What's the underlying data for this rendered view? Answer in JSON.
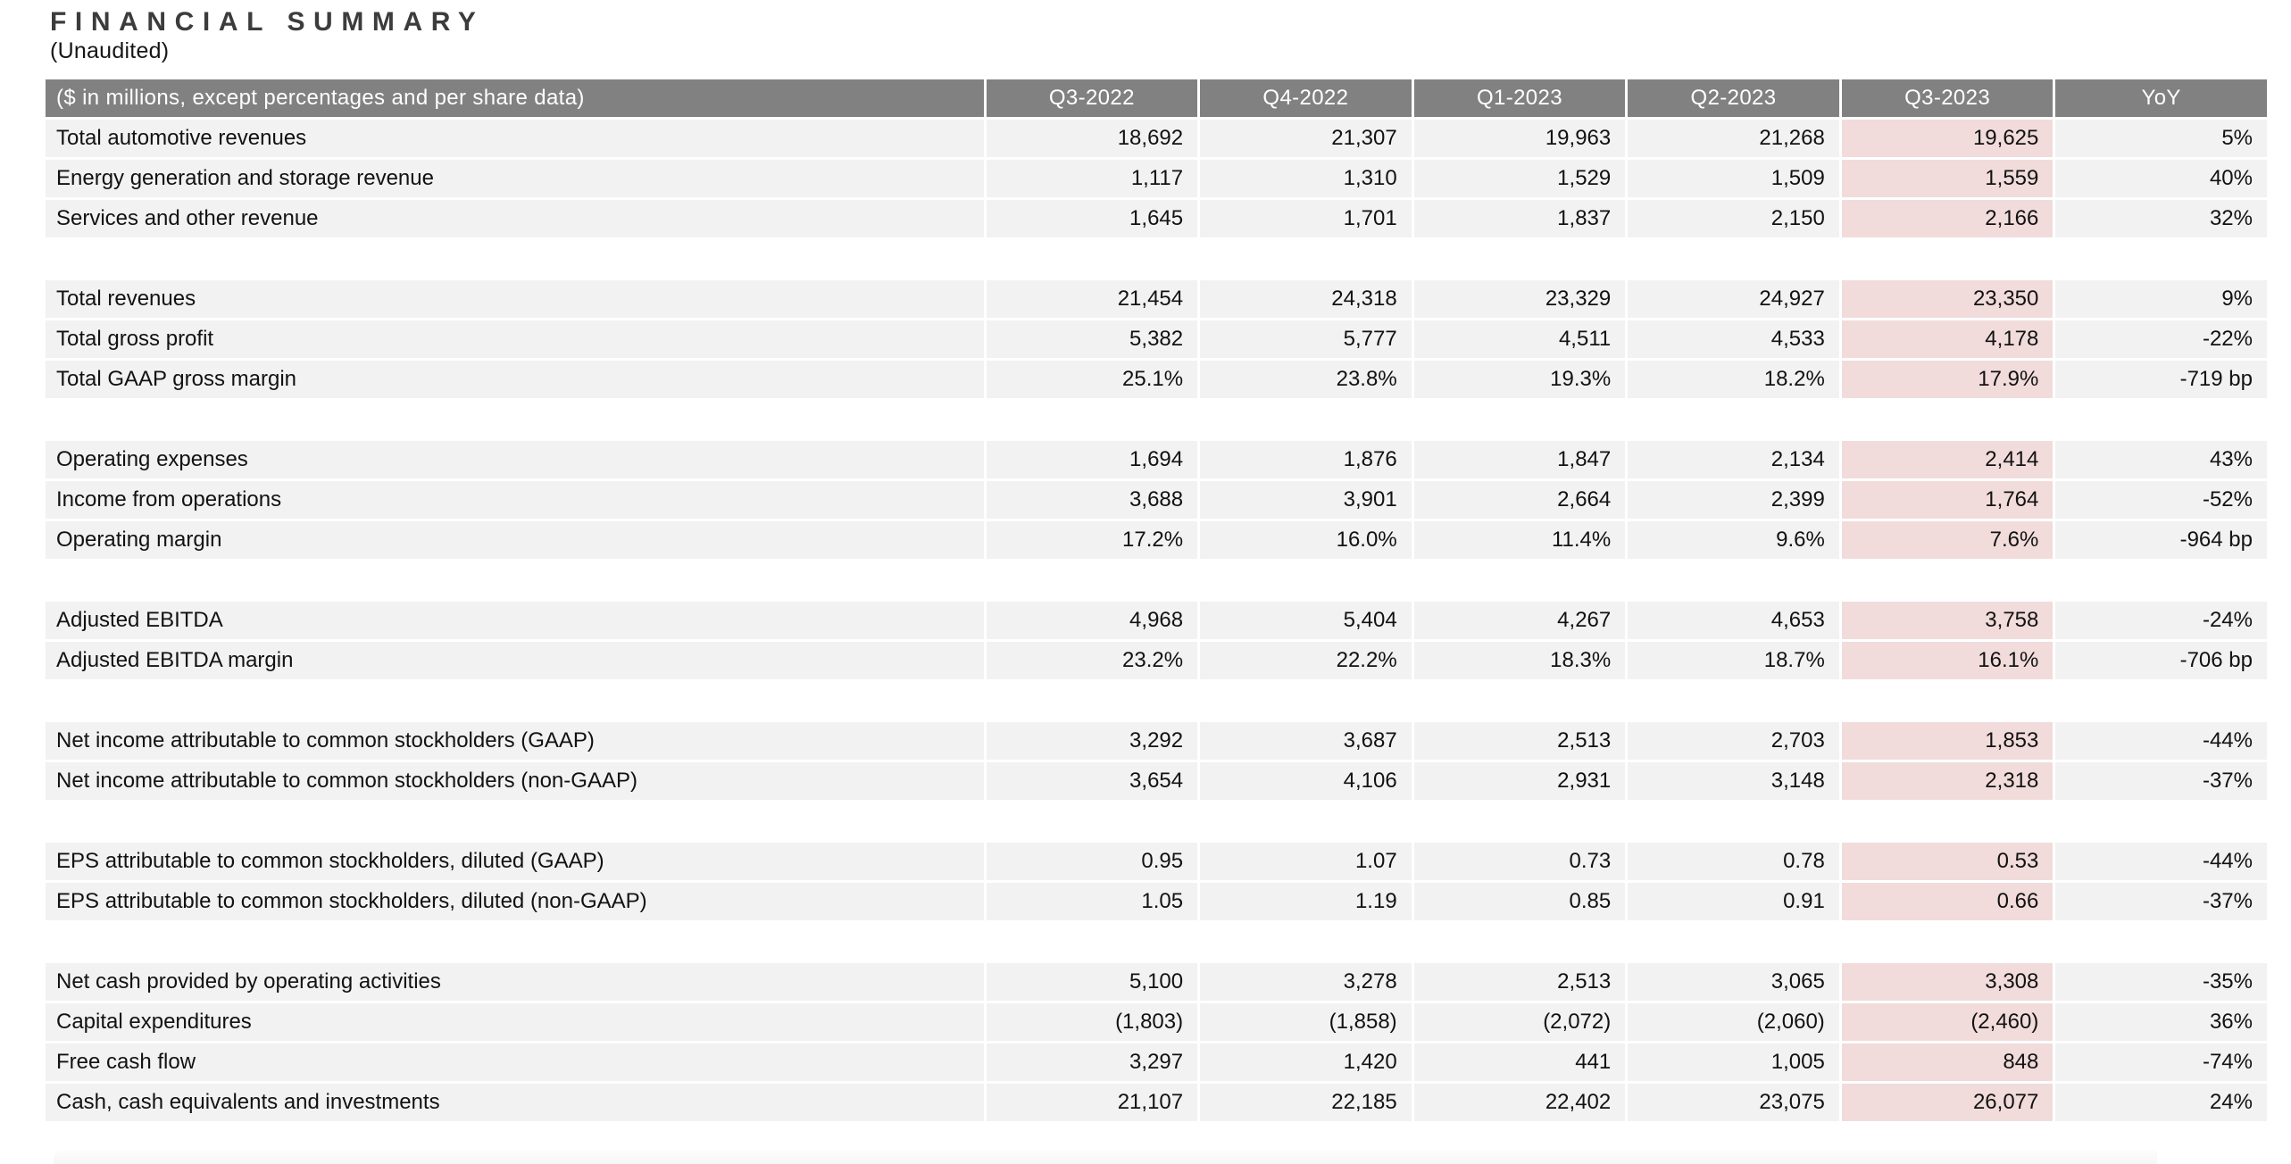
{
  "title": "FINANCIAL SUMMARY",
  "subtitle": "(Unaudited)",
  "colors": {
    "header_bg": "#818181",
    "header_text": "#ffffff",
    "row_bg": "#f2f2f2",
    "highlight_bg": "#f1dcdb",
    "text": "#121212"
  },
  "table": {
    "header": {
      "label": "($ in millions, except percentages and per share data)",
      "columns": [
        "Q3-2022",
        "Q4-2022",
        "Q1-2023",
        "Q2-2023",
        "Q3-2023",
        "YoY"
      ],
      "highlight_column": "Q3-2023"
    },
    "groups": [
      {
        "rows": [
          {
            "label": "Total automotive revenues",
            "values": [
              "18,692",
              "21,307",
              "19,963",
              "21,268",
              "19,625",
              "5%"
            ]
          },
          {
            "label": "Energy generation and storage revenue",
            "values": [
              "1,117",
              "1,310",
              "1,529",
              "1,509",
              "1,559",
              "40%"
            ]
          },
          {
            "label": "Services and other revenue",
            "values": [
              "1,645",
              "1,701",
              "1,837",
              "2,150",
              "2,166",
              "32%"
            ]
          }
        ]
      },
      {
        "rows": [
          {
            "label": "Total revenues",
            "values": [
              "21,454",
              "24,318",
              "23,329",
              "24,927",
              "23,350",
              "9%"
            ]
          },
          {
            "label": "Total gross profit",
            "values": [
              "5,382",
              "5,777",
              "4,511",
              "4,533",
              "4,178",
              "-22%"
            ]
          },
          {
            "label": "Total GAAP gross margin",
            "values": [
              "25.1%",
              "23.8%",
              "19.3%",
              "18.2%",
              "17.9%",
              "-719 bp"
            ]
          }
        ]
      },
      {
        "rows": [
          {
            "label": "Operating expenses",
            "values": [
              "1,694",
              "1,876",
              "1,847",
              "2,134",
              "2,414",
              "43%"
            ]
          },
          {
            "label": "Income from operations",
            "values": [
              "3,688",
              "3,901",
              "2,664",
              "2,399",
              "1,764",
              "-52%"
            ]
          },
          {
            "label": "Operating margin",
            "values": [
              "17.2%",
              "16.0%",
              "11.4%",
              "9.6%",
              "7.6%",
              "-964 bp"
            ]
          }
        ]
      },
      {
        "rows": [
          {
            "label": "Adjusted EBITDA",
            "values": [
              "4,968",
              "5,404",
              "4,267",
              "4,653",
              "3,758",
              "-24%"
            ]
          },
          {
            "label": "Adjusted EBITDA margin",
            "values": [
              "23.2%",
              "22.2%",
              "18.3%",
              "18.7%",
              "16.1%",
              "-706 bp"
            ]
          }
        ]
      },
      {
        "rows": [
          {
            "label": "Net income attributable to common stockholders (GAAP)",
            "values": [
              "3,292",
              "3,687",
              "2,513",
              "2,703",
              "1,853",
              "-44%"
            ]
          },
          {
            "label": "Net income attributable to common stockholders (non-GAAP)",
            "values": [
              "3,654",
              "4,106",
              "2,931",
              "3,148",
              "2,318",
              "-37%"
            ]
          }
        ]
      },
      {
        "rows": [
          {
            "label": "EPS attributable to common stockholders, diluted (GAAP)",
            "values": [
              "0.95",
              "1.07",
              "0.73",
              "0.78",
              "0.53",
              "-44%"
            ]
          },
          {
            "label": "EPS attributable to common stockholders, diluted (non-GAAP)",
            "values": [
              "1.05",
              "1.19",
              "0.85",
              "0.91",
              "0.66",
              "-37%"
            ]
          }
        ]
      },
      {
        "rows": [
          {
            "label": "Net cash provided by operating activities",
            "values": [
              "5,100",
              "3,278",
              "2,513",
              "3,065",
              "3,308",
              "-35%"
            ]
          },
          {
            "label": "Capital expenditures",
            "values": [
              "(1,803)",
              "(1,858)",
              "(2,072)",
              "(2,060)",
              "(2,460)",
              "36%"
            ]
          },
          {
            "label": "Free cash flow",
            "values": [
              "3,297",
              "1,420",
              "441",
              "1,005",
              "848",
              "-74%"
            ]
          },
          {
            "label": "Cash, cash equivalents and investments",
            "values": [
              "21,107",
              "22,185",
              "22,402",
              "23,075",
              "26,077",
              "24%"
            ]
          }
        ]
      }
    ]
  }
}
